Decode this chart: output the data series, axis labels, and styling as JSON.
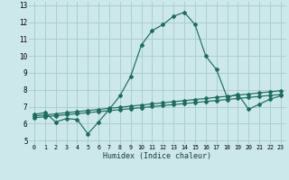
{
  "xlabel": "Humidex (Indice chaleur)",
  "xlim": [
    -0.5,
    23.5
  ],
  "ylim": [
    4.8,
    13.2
  ],
  "yticks": [
    5,
    6,
    7,
    8,
    9,
    10,
    11,
    12,
    13
  ],
  "xticks": [
    0,
    1,
    2,
    3,
    4,
    5,
    6,
    7,
    8,
    9,
    10,
    11,
    12,
    13,
    14,
    15,
    16,
    17,
    18,
    19,
    20,
    21,
    22,
    23
  ],
  "bg_color": "#cce8ea",
  "grid_color": "#aacdd2",
  "line_color": "#1e6b5e",
  "series1_x": [
    0,
    1,
    2,
    3,
    4,
    5,
    6,
    7,
    8,
    9,
    10,
    11,
    12,
    13,
    14,
    15,
    16,
    17,
    18,
    19,
    20,
    21,
    22,
    23
  ],
  "series1_y": [
    6.55,
    6.65,
    6.1,
    6.3,
    6.25,
    5.4,
    6.1,
    6.85,
    7.65,
    8.8,
    10.65,
    11.5,
    11.85,
    12.35,
    12.58,
    11.85,
    10.0,
    9.2,
    7.55,
    7.75,
    6.85,
    7.15,
    7.45,
    7.65
  ],
  "series2_x": [
    0,
    1,
    2,
    3,
    4,
    5,
    6,
    7,
    8,
    9,
    10,
    11,
    12,
    13,
    14,
    15,
    16,
    17,
    18,
    19,
    20,
    21,
    22,
    23
  ],
  "series2_y": [
    6.45,
    6.52,
    6.58,
    6.65,
    6.71,
    6.78,
    6.84,
    6.91,
    6.97,
    7.04,
    7.1,
    7.17,
    7.23,
    7.3,
    7.36,
    7.43,
    7.49,
    7.56,
    7.62,
    7.69,
    7.75,
    7.82,
    7.88,
    7.95
  ],
  "series3_x": [
    0,
    1,
    2,
    3,
    4,
    5,
    6,
    7,
    8,
    9,
    10,
    11,
    12,
    13,
    14,
    15,
    16,
    17,
    18,
    19,
    20,
    21,
    22,
    23
  ],
  "series3_y": [
    6.35,
    6.41,
    6.47,
    6.53,
    6.59,
    6.65,
    6.71,
    6.77,
    6.83,
    6.89,
    6.95,
    7.01,
    7.07,
    7.13,
    7.19,
    7.25,
    7.31,
    7.37,
    7.43,
    7.49,
    7.55,
    7.61,
    7.67,
    7.73
  ]
}
